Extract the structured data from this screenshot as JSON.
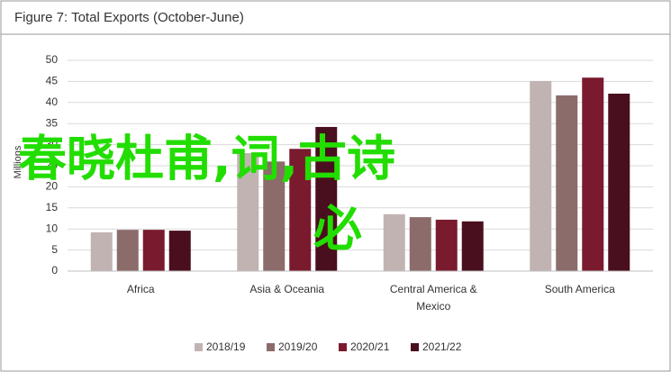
{
  "chart_data": {
    "type": "bar",
    "title": "Figure 7: Total Exports (October-June)",
    "y_label": "Millions",
    "categories": [
      "Africa",
      "Asia & Oceania",
      "Central America & Mexico",
      "South America"
    ],
    "series": [
      {
        "name": "2018/19",
        "color": "#c2b3b3",
        "values": [
          9.2,
          28,
          13.5,
          45.1
        ]
      },
      {
        "name": "2019/20",
        "color": "#8c6b6b",
        "values": [
          9.8,
          26,
          12.8,
          41.7
        ]
      },
      {
        "name": "2020/21",
        "color": "#7a1a2e",
        "values": [
          9.8,
          29,
          12.2,
          45.9
        ]
      },
      {
        "name": "2021/22",
        "color": "#4a0f1e",
        "values": [
          9.6,
          34.2,
          11.8,
          42.1
        ]
      }
    ],
    "ylim": [
      0,
      50
    ],
    "yticks": [
      0,
      5,
      10,
      15,
      20,
      25,
      30,
      35,
      40,
      45,
      50
    ],
    "grid": true,
    "legend": "bottom",
    "annotations": [
      "春晓杜甫,词,古诗",
      "必"
    ]
  }
}
